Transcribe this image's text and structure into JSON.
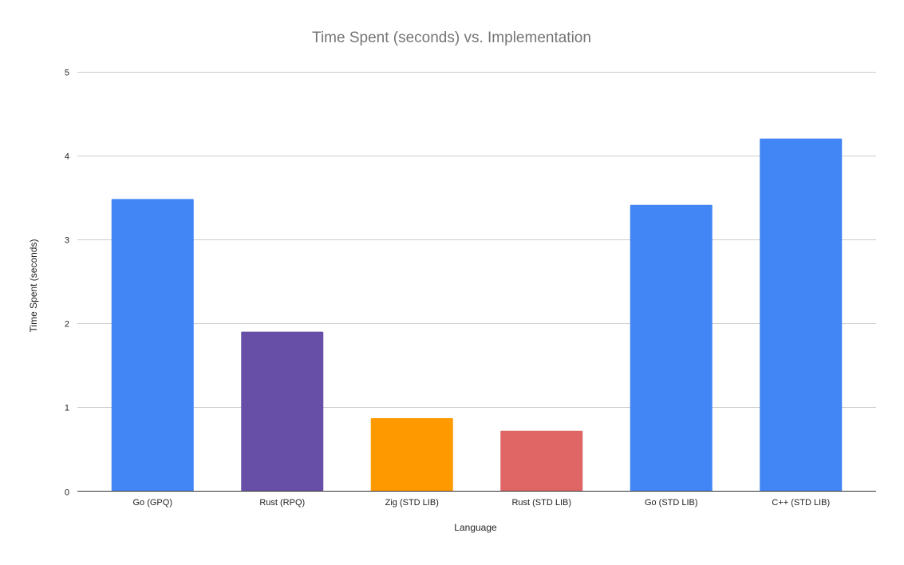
{
  "chart_data": {
    "type": "bar",
    "title": "Time Spent (seconds) vs. Implementation",
    "xlabel": "Language",
    "ylabel": "Time Spent (seconds)",
    "categories": [
      "Go (GPQ)",
      "Rust (RPQ)",
      "Zig (STD LIB)",
      "Rust (STD LIB)",
      "Go (STD LIB)",
      "C++ (STD LIB)"
    ],
    "values": [
      3.48,
      1.9,
      0.87,
      0.72,
      3.41,
      4.2
    ],
    "colors": [
      "#4285f4",
      "#674ea7",
      "#ff9900",
      "#e06666",
      "#4285f4",
      "#4285f4"
    ],
    "ylim": [
      0,
      5
    ],
    "yticks": [
      "0",
      "1",
      "2",
      "3",
      "4",
      "5"
    ],
    "grid": true,
    "legend": "none"
  }
}
